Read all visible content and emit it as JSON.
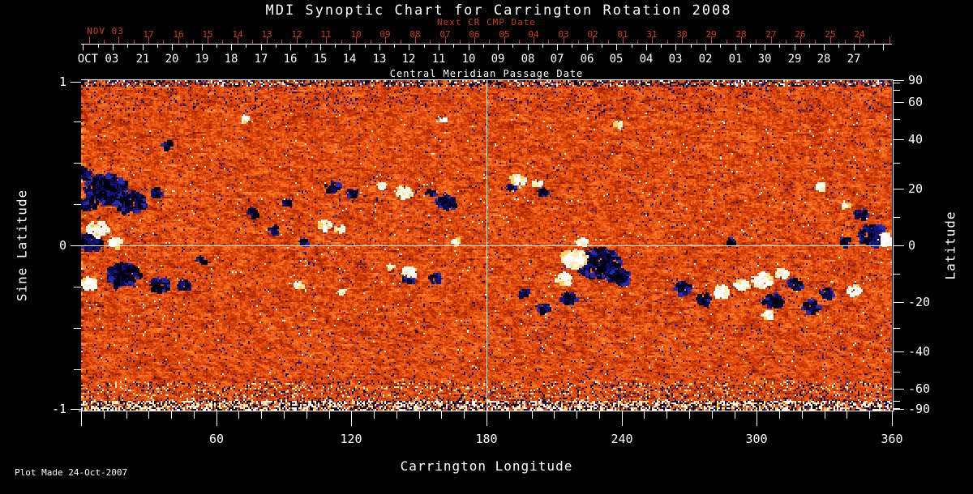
{
  "title": "MDI Synoptic Chart for Carrington Rotation 2008",
  "footer": {
    "plot_made": "Plot Made 24-Oct-2007"
  },
  "colors": {
    "background": "#000000",
    "text": "#ffffff",
    "red_axis": "#cc3e16",
    "quiet_sun_orange": "#e65212",
    "negative_polarity": "#10105a",
    "positive_polarity": "#ffffff"
  },
  "top_axis": {
    "next_cr_label": "Next CR CMP Date",
    "next_cr_month": "NOV 03",
    "next_cr_dates": [
      "17",
      "16",
      "15",
      "14",
      "13",
      "12",
      "11",
      "10",
      "09",
      "08",
      "07",
      "06",
      "05",
      "04",
      "03",
      "02",
      "01",
      "31",
      "30",
      "29",
      "28",
      "27",
      "26",
      "25",
      "24"
    ],
    "cmp_label": "Central Meridian Passage Date",
    "cmp_month": "OCT 03",
    "cmp_dates": [
      "21",
      "20",
      "19",
      "18",
      "17",
      "16",
      "15",
      "14",
      "13",
      "12",
      "11",
      "10",
      "09",
      "08",
      "07",
      "06",
      "05",
      "04",
      "03",
      "02",
      "01",
      "30",
      "29",
      "28",
      "27"
    ]
  },
  "bottom_axis": {
    "title": "Carrington Longitude",
    "tick_labels": [
      "60",
      "120",
      "180",
      "240",
      "300",
      "360"
    ],
    "tick_values": [
      60,
      120,
      180,
      240,
      300,
      360
    ]
  },
  "left_axis": {
    "title": "Sine Latitude",
    "tick_labels": [
      "1",
      "0",
      "-1"
    ],
    "tick_values": [
      1,
      0,
      -1
    ]
  },
  "right_axis": {
    "title": "Latitude",
    "tick_labels": [
      "90",
      "60",
      "40",
      "20",
      "0",
      "-20",
      "-40",
      "-60",
      "-90"
    ],
    "tick_values": [
      90,
      60,
      40,
      20,
      0,
      -20,
      -40,
      -60,
      -90
    ]
  },
  "chart_data": {
    "type": "heatmap",
    "title": "MDI Synoptic Chart for Carrington Rotation 2008",
    "xlabel": "Carrington Longitude",
    "ylabel_left": "Sine Latitude",
    "ylabel_right": "Latitude",
    "x_range": [
      0,
      360
    ],
    "y_range_sine_latitude": [
      -1,
      1
    ],
    "x_ticks": [
      60,
      120,
      180,
      240,
      300,
      360
    ],
    "x_minor_tick_step_deg": 10,
    "left_ticks_sine_latitude": [
      1,
      0,
      -1
    ],
    "left_minor_tick_step_sine": 0.25,
    "right_ticks_latitude_deg": [
      90,
      60,
      40,
      20,
      0,
      -20,
      -40,
      -60,
      -90
    ],
    "right_minor_ticks_latitude_deg": [
      80,
      70,
      50,
      30,
      10,
      -10,
      -30,
      -50,
      -70,
      -80
    ],
    "y_projection": "sine of latitude",
    "top_axis_next_cr_cmp_dates": {
      "month_start": "NOV 03",
      "days": [
        "17",
        "16",
        "15",
        "14",
        "13",
        "12",
        "11",
        "10",
        "09",
        "08",
        "07",
        "06",
        "05",
        "04",
        "03",
        "02",
        "01",
        "31",
        "30",
        "29",
        "28",
        "27",
        "26",
        "25",
        "24"
      ]
    },
    "top_axis_cmp_dates": {
      "month_start": "OCT 03",
      "days": [
        "21",
        "20",
        "19",
        "18",
        "17",
        "16",
        "15",
        "14",
        "13",
        "12",
        "11",
        "10",
        "09",
        "08",
        "07",
        "06",
        "05",
        "04",
        "03",
        "02",
        "01",
        "30",
        "29",
        "28",
        "27"
      ]
    },
    "colormap": "dark blue/black = negative magnetic polarity, red-orange = quiet sun, white/yellow = positive magnetic polarity",
    "reference_lines": {
      "longitude_deg": 180,
      "sine_latitude": 0
    },
    "footnote": "Plot Made 24-Oct-2007",
    "active_region_blobs_lon_sinlat_radius_polarity": [
      [
        10.1,
        0.35,
        9.4,
        -1
      ],
      [
        21.6,
        0.27,
        6.5,
        -1
      ],
      [
        3.6,
        0.03,
        5,
        -1
      ],
      [
        18,
        -0.17,
        7.2,
        -1
      ],
      [
        34.2,
        -0.23,
        4.3,
        -1
      ],
      [
        45,
        -0.23,
        2.9,
        -1
      ],
      [
        1.8,
        0.25,
        3.6,
        -1
      ],
      [
        32.4,
        0.33,
        2.5,
        -1
      ],
      [
        52.6,
        -0.08,
        1.8,
        -1
      ],
      [
        75.6,
        0.21,
        2.5,
        -1
      ],
      [
        85,
        0.11,
        2.2,
        -1
      ],
      [
        90.7,
        0.27,
        2.2,
        -1
      ],
      [
        110.9,
        0.36,
        3.2,
        -1
      ],
      [
        119.5,
        0.32,
        2.5,
        -1
      ],
      [
        97.9,
        0.03,
        1.8,
        -1
      ],
      [
        161.3,
        0.27,
        4.3,
        -1
      ],
      [
        154.8,
        0.33,
        2.2,
        -1
      ],
      [
        144,
        -0.2,
        2.2,
        -1
      ],
      [
        157,
        -0.19,
        2.9,
        -1
      ],
      [
        190.1,
        0.35,
        2.2,
        -1
      ],
      [
        204.5,
        0.33,
        2.5,
        -1
      ],
      [
        229,
        -0.1,
        9.4,
        -1
      ],
      [
        238.3,
        -0.18,
        5,
        -1
      ],
      [
        216,
        -0.31,
        3.6,
        -1
      ],
      [
        204.5,
        -0.37,
        2.9,
        -1
      ],
      [
        196.2,
        -0.28,
        2.2,
        -1
      ],
      [
        266.4,
        -0.25,
        3.6,
        -1
      ],
      [
        275.8,
        -0.31,
        3.2,
        -1
      ],
      [
        288,
        0.03,
        1.8,
        -1
      ],
      [
        306.7,
        -0.33,
        4.3,
        -1
      ],
      [
        316.1,
        -0.22,
        3.2,
        -1
      ],
      [
        323.3,
        -0.36,
        3.6,
        -1
      ],
      [
        330.5,
        -0.28,
        2.9,
        -1
      ],
      [
        339.1,
        0.03,
        2.5,
        -1
      ],
      [
        351.4,
        0.07,
        6.5,
        -1
      ],
      [
        345.6,
        0.2,
        2.9,
        -1
      ],
      [
        37.8,
        0.62,
        2.2,
        -1
      ],
      [
        0.5,
        0.45,
        3.6,
        -1
      ],
      [
        6.5,
        0.11,
        4.3,
        1
      ],
      [
        2.9,
        -0.22,
        3.6,
        1
      ],
      [
        14.4,
        0.03,
        2.9,
        1
      ],
      [
        107.3,
        0.13,
        2.9,
        1
      ],
      [
        114.5,
        0.11,
        2.2,
        1
      ],
      [
        142.2,
        0.33,
        3.6,
        1
      ],
      [
        133.2,
        0.37,
        2.2,
        1
      ],
      [
        144.7,
        -0.15,
        3.2,
        1
      ],
      [
        136.8,
        -0.12,
        1.8,
        1
      ],
      [
        165.6,
        0.03,
        1.8,
        1
      ],
      [
        193,
        0.41,
        2.9,
        1
      ],
      [
        201.6,
        0.38,
        2.2,
        1
      ],
      [
        218.2,
        -0.07,
        5.8,
        1
      ],
      [
        213.8,
        -0.19,
        3.6,
        1
      ],
      [
        221.8,
        0.04,
        2.5,
        1
      ],
      [
        283.7,
        -0.27,
        3.6,
        1
      ],
      [
        292.3,
        -0.23,
        2.9,
        1
      ],
      [
        301.7,
        -0.2,
        4.3,
        1
      ],
      [
        310.3,
        -0.16,
        2.9,
        1
      ],
      [
        304.2,
        -0.41,
        2.5,
        1
      ],
      [
        342.7,
        -0.26,
        2.9,
        1
      ],
      [
        357.1,
        0.05,
        3.6,
        1
      ],
      [
        338.4,
        0.25,
        1.8,
        1
      ],
      [
        72,
        0.77,
        1.8,
        1
      ],
      [
        237.6,
        0.74,
        1.8,
        1
      ],
      [
        160.2,
        0.77,
        1.4,
        1
      ],
      [
        327.6,
        0.37,
        2.2,
        1
      ],
      [
        95.4,
        -0.23,
        2.2,
        1
      ],
      [
        115.2,
        -0.27,
        1.4,
        1
      ]
    ]
  }
}
